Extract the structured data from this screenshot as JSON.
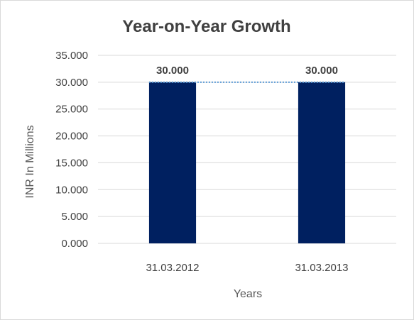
{
  "chart_data": {
    "type": "bar",
    "title": "Year-on-Year Growth",
    "xlabel": "Years",
    "ylabel": "INR In Millions",
    "categories": [
      "31.03.2012",
      "31.03.2013"
    ],
    "values": [
      30,
      30
    ],
    "value_labels": [
      "30.000",
      "30.000"
    ],
    "ylim": [
      0,
      35
    ],
    "yticks": [
      0,
      5,
      10,
      15,
      20,
      25,
      30,
      35
    ],
    "ytick_labels": [
      "0.000",
      "5.000",
      "10.000",
      "15.000",
      "20.000",
      "25.000",
      "30.000",
      "35.000"
    ],
    "grid": true,
    "legend": "none",
    "bar_color": "#002060",
    "trendline_color": "#5b9bd5",
    "gridline_color": "#d9d9d9"
  }
}
